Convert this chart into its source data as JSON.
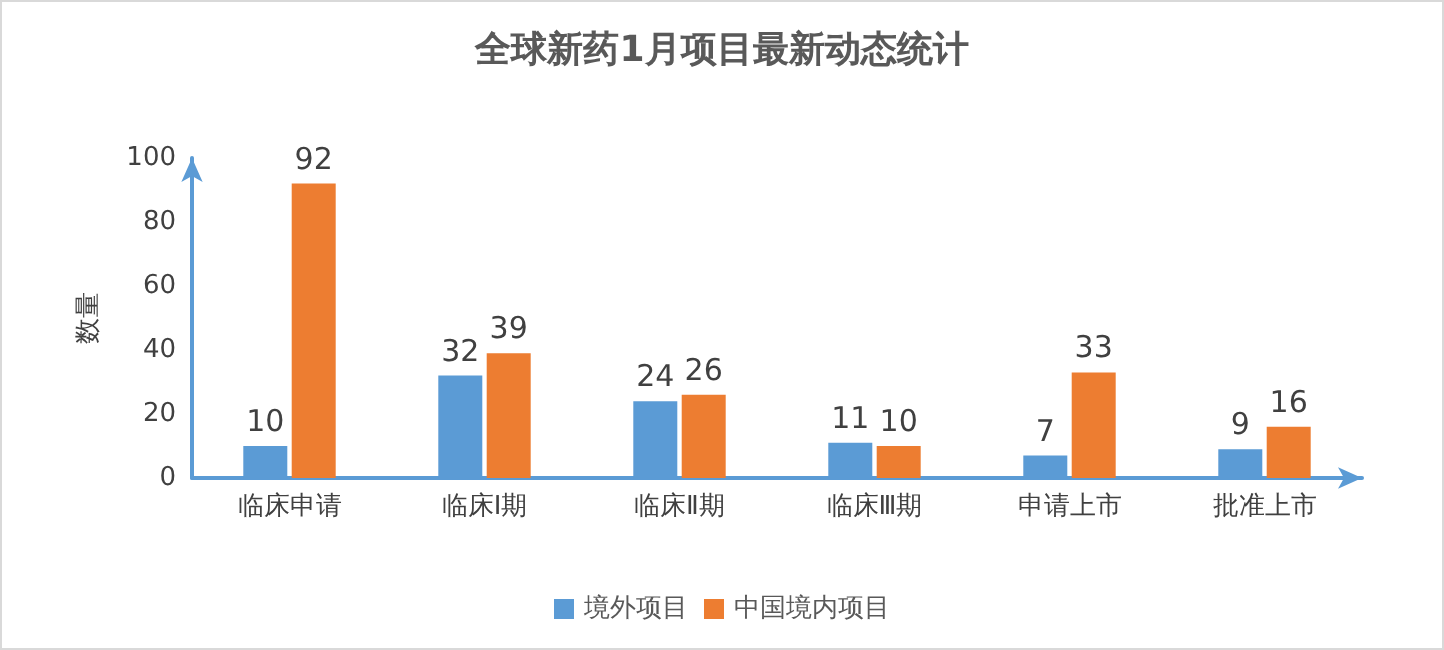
{
  "chart_data": {
    "type": "bar",
    "title": "全球新药1月项目最新动态统计",
    "ylabel": "数量",
    "categories": [
      "临床申请",
      "临床Ⅰ期",
      "临床Ⅱ期",
      "临床Ⅲ期",
      "申请上市",
      "批准上市"
    ],
    "series": [
      {
        "name": "境外项目",
        "color": "#5b9bd5",
        "values": [
          10,
          32,
          24,
          11,
          7,
          9
        ]
      },
      {
        "name": "中国境内项目",
        "color": "#ed7d31",
        "values": [
          92,
          39,
          26,
          10,
          33,
          16
        ]
      }
    ],
    "ylim": [
      0,
      100
    ],
    "yticks": [
      0,
      20,
      40,
      60,
      80,
      100
    ],
    "grid": false,
    "legend": "bottom",
    "data_labels": true
  }
}
